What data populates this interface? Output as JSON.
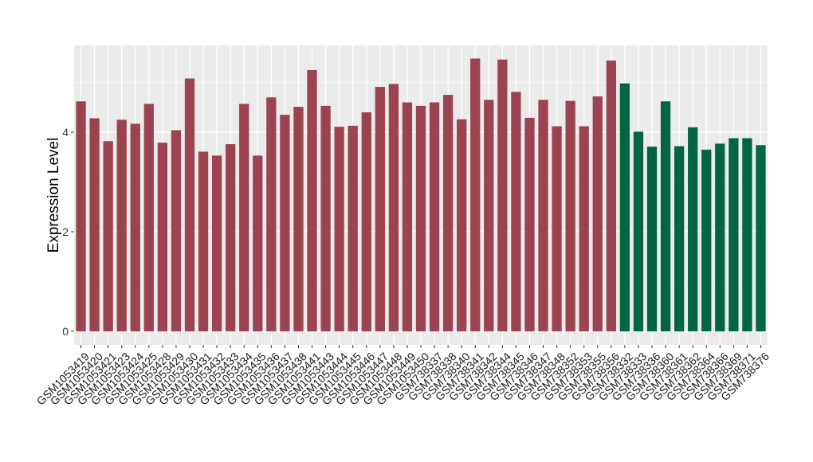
{
  "chart_data": {
    "type": "bar",
    "title": "",
    "xlabel": "",
    "ylabel": "Expression Level",
    "ylim": [
      0,
      5.75
    ],
    "y_ticks": [
      "0",
      "2",
      "4"
    ],
    "grid": true,
    "legend": "none",
    "colors": {
      "group1": "#9b4350",
      "group2": "#006641",
      "panel": "#ebebeb",
      "grid": "#ffffff"
    },
    "categories": [
      "GSM1053419",
      "GSM1053420",
      "GSM1053421",
      "GSM1053423",
      "GSM1053424",
      "GSM1053425",
      "GSM1053428",
      "GSM1053429",
      "GSM1053430",
      "GSM1053431",
      "GSM1053432",
      "GSM1053433",
      "GSM1053434",
      "GSM1053435",
      "GSM1053436",
      "GSM1053437",
      "GSM1053438",
      "GSM1053441",
      "GSM1053443",
      "GSM1053444",
      "GSM1053445",
      "GSM1053446",
      "GSM1053447",
      "GSM1053448",
      "GSM1053449",
      "GSM1053450",
      "GSM738337",
      "GSM738338",
      "GSM738340",
      "GSM738341",
      "GSM738342",
      "GSM738344",
      "GSM738345",
      "GSM738346",
      "GSM738347",
      "GSM738348",
      "GSM738352",
      "GSM738353",
      "GSM738355",
      "GSM738356",
      "GSM738332",
      "GSM738333",
      "GSM738336",
      "GSM738360",
      "GSM738361",
      "GSM738362",
      "GSM738364",
      "GSM738366",
      "GSM738369",
      "GSM738371",
      "GSM738376"
    ],
    "values": [
      4.62,
      4.28,
      3.82,
      4.25,
      4.17,
      4.57,
      3.79,
      4.04,
      5.08,
      3.61,
      3.53,
      3.76,
      4.57,
      3.53,
      4.7,
      4.35,
      4.51,
      5.25,
      4.53,
      4.11,
      4.13,
      4.4,
      4.91,
      4.97,
      4.6,
      4.53,
      4.6,
      4.75,
      4.26,
      5.48,
      4.65,
      5.46,
      4.81,
      4.29,
      4.65,
      4.12,
      4.63,
      4.12,
      4.72,
      5.44,
      4.98,
      4.01,
      3.71,
      4.62,
      3.72,
      4.1,
      3.65,
      3.77,
      3.88,
      3.88,
      3.74
    ],
    "groups": [
      1,
      1,
      1,
      1,
      1,
      1,
      1,
      1,
      1,
      1,
      1,
      1,
      1,
      1,
      1,
      1,
      1,
      1,
      1,
      1,
      1,
      1,
      1,
      1,
      1,
      1,
      1,
      1,
      1,
      1,
      1,
      1,
      1,
      1,
      1,
      1,
      1,
      1,
      1,
      1,
      2,
      2,
      2,
      2,
      2,
      2,
      2,
      2,
      2,
      2,
      2
    ]
  }
}
